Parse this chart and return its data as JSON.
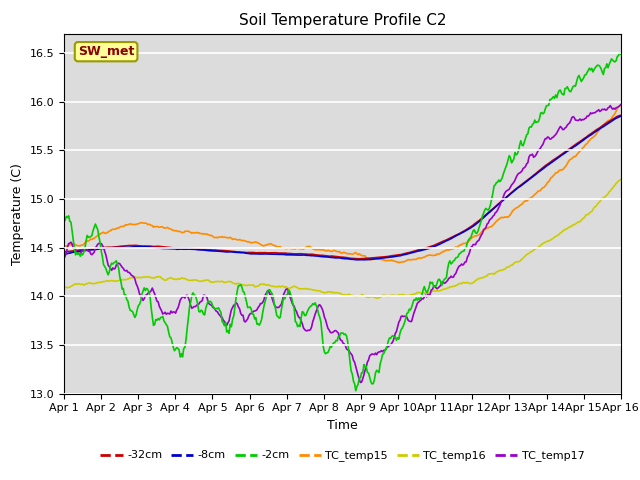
{
  "title": "Soil Temperature Profile C2",
  "xlabel": "Time",
  "ylabel": "Temperature (C)",
  "ylim": [
    13.0,
    16.7
  ],
  "xlim": [
    0,
    15
  ],
  "xtick_labels": [
    "Apr 1",
    "Apr 2",
    "Apr 3",
    "Apr 4",
    "Apr 5",
    "Apr 6",
    "Apr 7",
    "Apr 8",
    "Apr 9",
    "Apr 10",
    "Apr 11",
    "Apr 12",
    "Apr 13",
    "Apr 14",
    "Apr 15",
    "Apr 16"
  ],
  "ytick_vals": [
    13.0,
    13.5,
    14.0,
    14.5,
    15.0,
    15.5,
    16.0,
    16.5
  ],
  "annotation_text": "SW_met",
  "annotation_color": "#8B0000",
  "annotation_bg": "#FFFF99",
  "annotation_edge": "#999900",
  "bg_color": "#DCDCDC",
  "fig_bg": "#ffffff",
  "series": {
    "-32cm": {
      "color": "#CC0000",
      "lw": 1.2
    },
    "-8cm": {
      "color": "#0000CC",
      "lw": 1.2
    },
    "-2cm": {
      "color": "#00CC00",
      "lw": 1.2
    },
    "TC_temp15": {
      "color": "#FF8C00",
      "lw": 1.2
    },
    "TC_temp16": {
      "color": "#CCCC00",
      "lw": 1.2
    },
    "TC_temp17": {
      "color": "#9900CC",
      "lw": 1.2
    }
  },
  "grid_color": "#ffffff",
  "title_fontsize": 11,
  "label_fontsize": 9,
  "tick_fontsize": 8
}
